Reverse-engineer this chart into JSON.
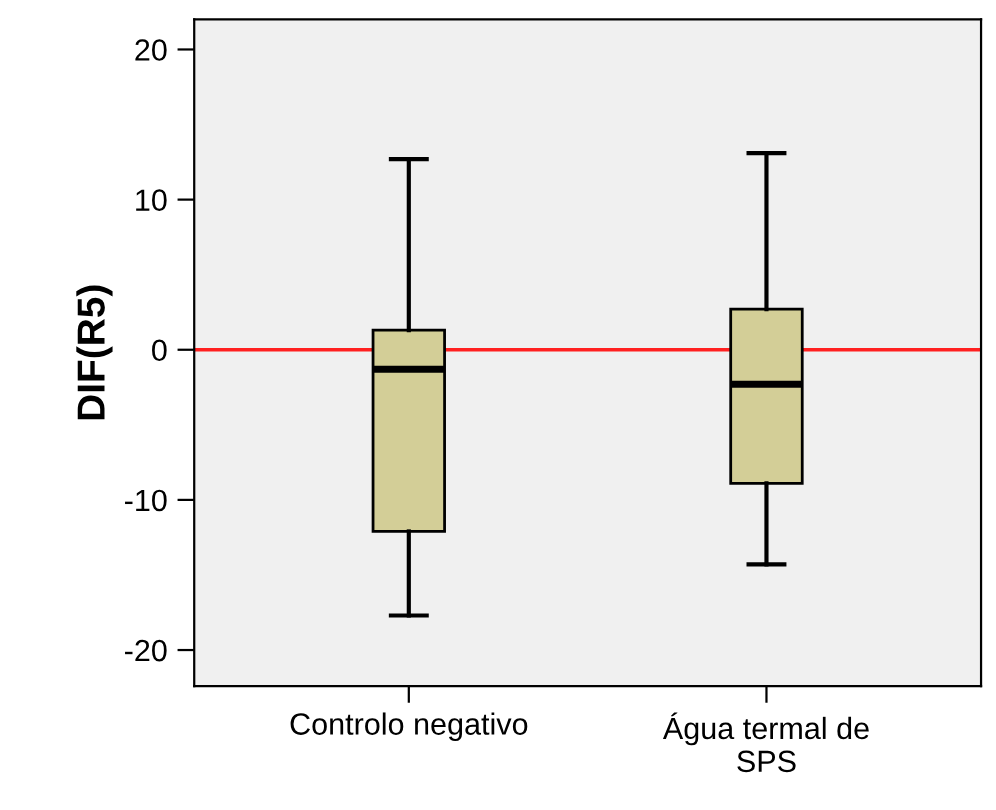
{
  "chart_data": {
    "type": "box",
    "ylabel": "DIF(R5)",
    "categories": [
      "Controlo negativo",
      "Água termal de\nSPS"
    ],
    "boxes": [
      {
        "low": -17.7,
        "q1": -12.1,
        "median": -1.3,
        "q3": 1.3,
        "high": 12.7
      },
      {
        "low": -14.3,
        "q1": -8.9,
        "median": -2.3,
        "q3": 2.7,
        "high": 13.1
      }
    ],
    "color": "#d3ce97",
    "ylim": [
      -22.4,
      22
    ],
    "yticks": [
      -20,
      -10,
      0,
      10,
      20
    ],
    "ref_lines": [
      {
        "axis": "y",
        "value": 0,
        "label": null,
        "color": "#ff2020"
      }
    ],
    "grid": false,
    "legend": false
  }
}
